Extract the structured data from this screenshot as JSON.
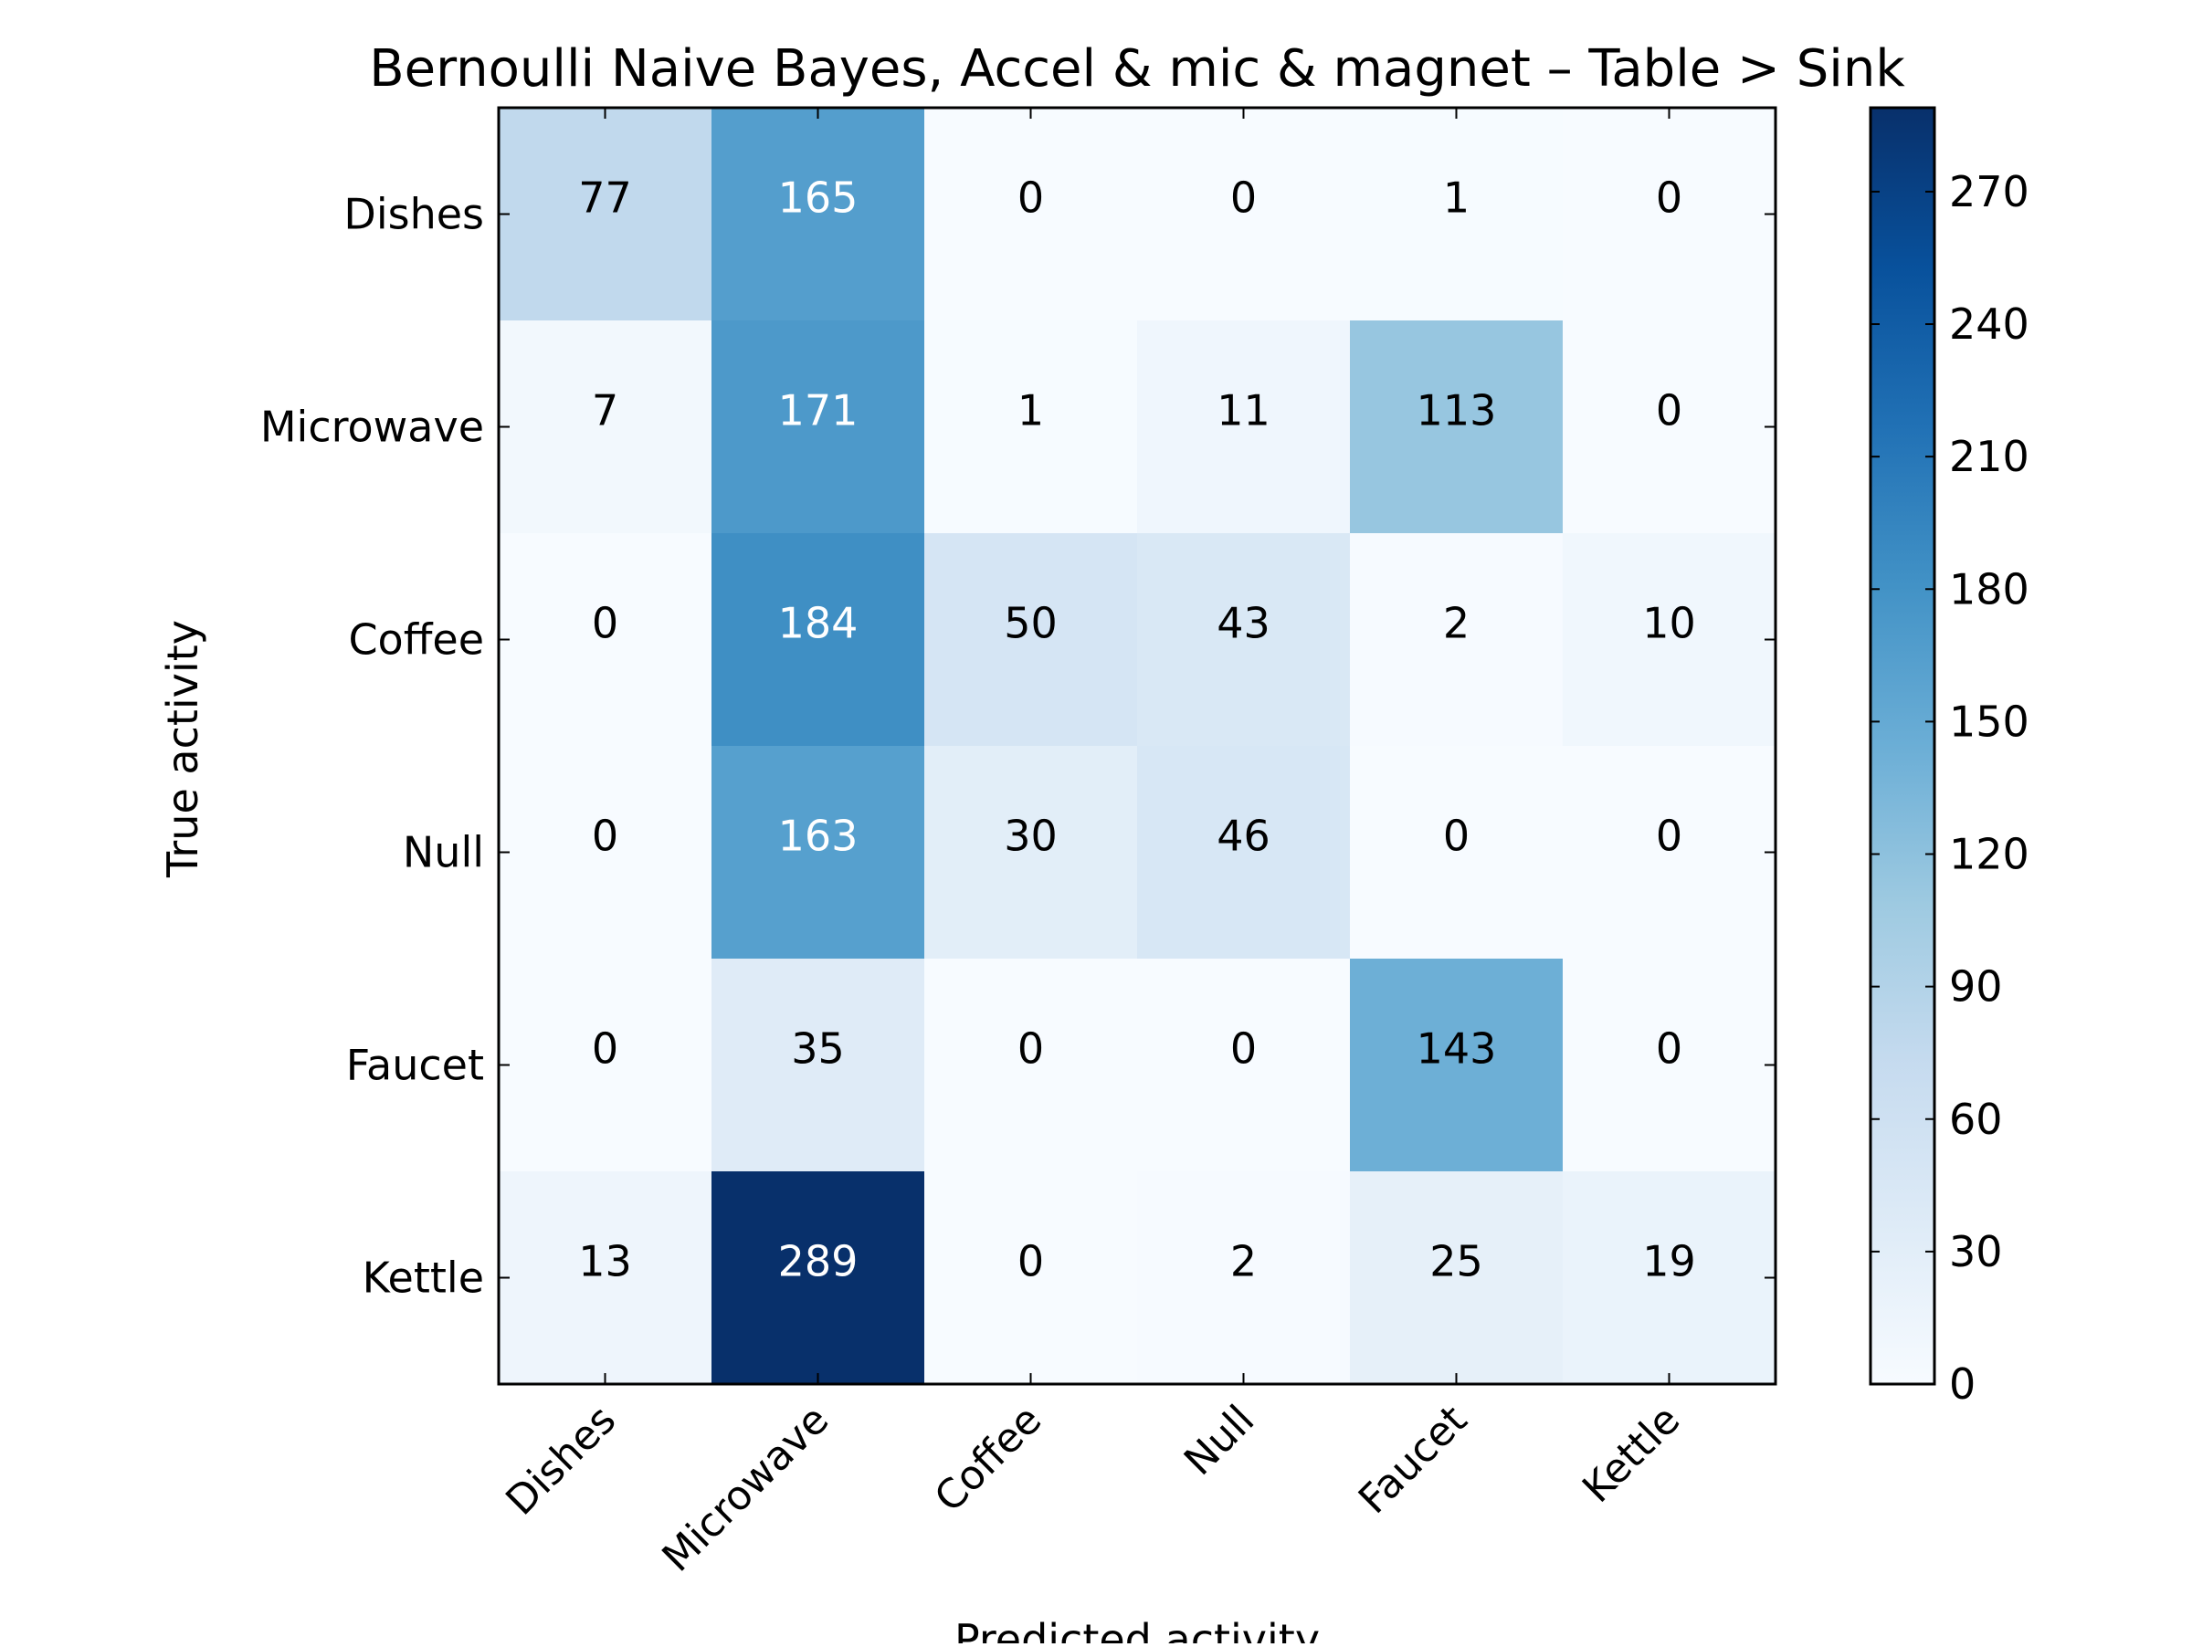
{
  "chart_data": {
    "type": "heatmap",
    "title": "Bernoulli Naive Bayes, Accel & mic & magnet – Table > Sink",
    "xlabel": "Predicted activity",
    "ylabel": "True activity",
    "x_categories": [
      "Dishes",
      "Microwave",
      "Coffee",
      "Null",
      "Faucet",
      "Kettle"
    ],
    "y_categories": [
      "Dishes",
      "Microwave",
      "Coffee",
      "Null",
      "Faucet",
      "Kettle"
    ],
    "values": [
      [
        77,
        165,
        0,
        0,
        1,
        0
      ],
      [
        7,
        171,
        1,
        11,
        113,
        0
      ],
      [
        0,
        184,
        50,
        43,
        2,
        10
      ],
      [
        0,
        163,
        30,
        46,
        0,
        0
      ],
      [
        0,
        35,
        0,
        0,
        143,
        0
      ],
      [
        13,
        289,
        0,
        2,
        25,
        19
      ]
    ],
    "colormap": "Blues",
    "colorbar": {
      "range": [
        0,
        289
      ],
      "ticks": [
        0,
        30,
        60,
        90,
        120,
        150,
        180,
        210,
        240,
        270
      ]
    },
    "text_color_threshold": 144.5,
    "colors": {
      "light_text": "#ffffff",
      "dark_text": "#000000",
      "frame": "#000000"
    }
  }
}
